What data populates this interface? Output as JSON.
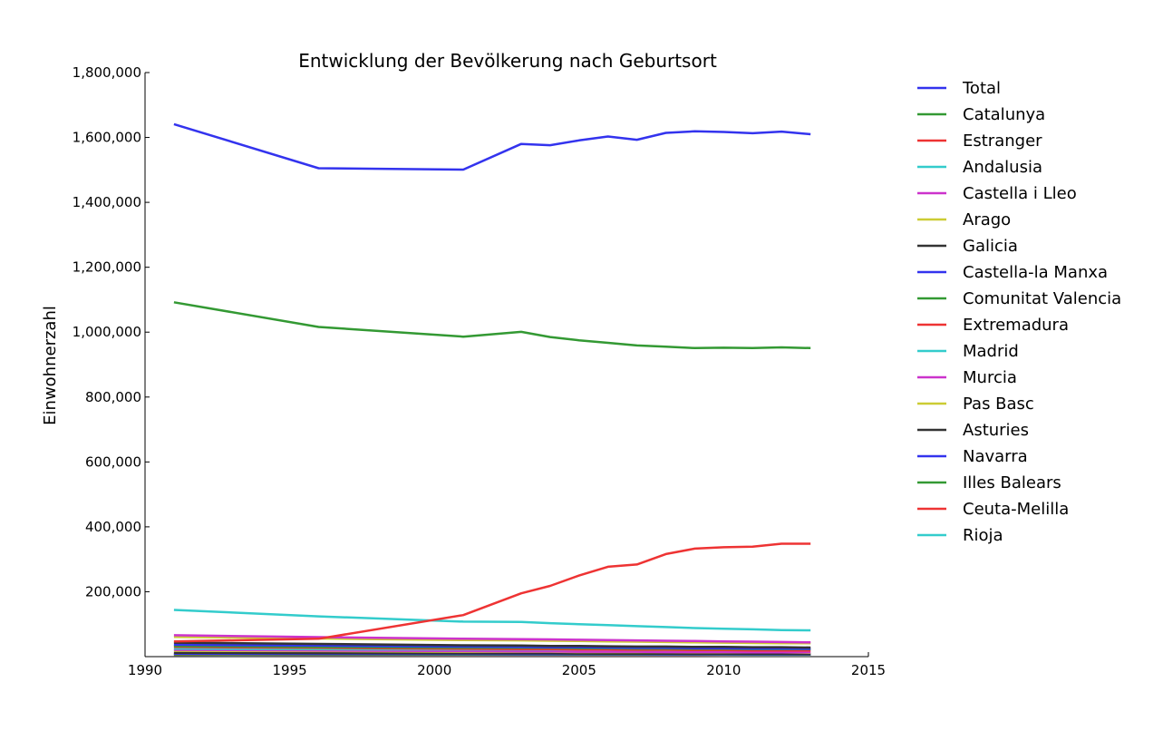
{
  "chart_data": {
    "type": "line",
    "title": "Entwicklung der Bevölkerung nach Geburtsort",
    "xlabel": "",
    "ylabel": "Einwohnerzahl",
    "xlim": [
      1990,
      2015
    ],
    "ylim": [
      0,
      1800000
    ],
    "x_ticks": [
      "1990",
      "1995",
      "2000",
      "2005",
      "2010",
      "2015"
    ],
    "y_ticks": [
      "200,000",
      "400,000",
      "600,000",
      "800,000",
      "1,000,000",
      "1,200,000",
      "1,400,000",
      "1,600,000",
      "1,800,000"
    ],
    "grid": false,
    "legend_position": "outside-right",
    "x": [
      1991,
      1996,
      2001,
      2003,
      2004,
      2005,
      2006,
      2007,
      2008,
      2009,
      2010,
      2011,
      2012,
      2013
    ],
    "series": [
      {
        "name": "Total",
        "color": "#3333ee",
        "values": [
          1641000,
          1505000,
          1501000,
          1580000,
          1576000,
          1591000,
          1603000,
          1593000,
          1614000,
          1619000,
          1617000,
          1613000,
          1618000,
          1610000
        ]
      },
      {
        "name": "Catalunya",
        "color": "#339933",
        "values": [
          1092000,
          1016000,
          986000,
          1001000,
          985000,
          975000,
          967000,
          959000,
          955000,
          951000,
          952000,
          951000,
          953000,
          951000
        ]
      },
      {
        "name": "Estranger",
        "color": "#ee3333",
        "values": [
          47000,
          55000,
          128000,
          195000,
          218000,
          250000,
          277000,
          284000,
          316000,
          333000,
          337000,
          339000,
          348000,
          348000
        ]
      },
      {
        "name": "Andalusia",
        "color": "#33cccc",
        "values": [
          144000,
          124000,
          108000,
          107000,
          103000,
          100000,
          97000,
          94000,
          91000,
          88000,
          86000,
          84000,
          82000,
          81000
        ]
      },
      {
        "name": "Castella i Lleo",
        "color": "#cc33cc",
        "values": [
          66000,
          60000,
          55000,
          54000,
          53000,
          52000,
          51000,
          50000,
          49000,
          48000,
          47000,
          46000,
          45000,
          44000
        ]
      },
      {
        "name": "Arago",
        "color": "#cccc33",
        "values": [
          61000,
          56000,
          51000,
          50000,
          49000,
          48000,
          47000,
          46000,
          45000,
          44000,
          43000,
          42000,
          41000,
          41000
        ]
      },
      {
        "name": "Galicia",
        "color": "#333333",
        "values": [
          43000,
          39000,
          35000,
          34000,
          33000,
          33000,
          32000,
          31000,
          31000,
          30000,
          30000,
          29000,
          29000,
          28000
        ]
      },
      {
        "name": "Castella-la Manxa",
        "color": "#3333ee",
        "values": [
          37000,
          34000,
          31000,
          30000,
          29000,
          29000,
          28000,
          27000,
          27000,
          26000,
          26000,
          25000,
          25000,
          24000
        ]
      },
      {
        "name": "Comunitat Valencia",
        "color": "#339933",
        "values": [
          33000,
          30000,
          28000,
          27000,
          27000,
          26000,
          26000,
          25000,
          25000,
          24000,
          24000,
          23000,
          23000,
          23000
        ]
      },
      {
        "name": "Extremadura",
        "color": "#ee3333",
        "values": [
          30000,
          27000,
          24000,
          23000,
          23000,
          22000,
          22000,
          21000,
          21000,
          20000,
          20000,
          19000,
          19000,
          19000
        ]
      },
      {
        "name": "Madrid",
        "color": "#33cccc",
        "values": [
          25000,
          23000,
          22000,
          22000,
          22000,
          22000,
          22000,
          21000,
          21000,
          21000,
          21000,
          20000,
          20000,
          20000
        ]
      },
      {
        "name": "Murcia",
        "color": "#cc33cc",
        "values": [
          21000,
          19000,
          17000,
          16000,
          16000,
          15000,
          15000,
          15000,
          14000,
          14000,
          14000,
          13000,
          13000,
          13000
        ]
      },
      {
        "name": "Pas Basc",
        "color": "#cccc33",
        "values": [
          18000,
          17000,
          15000,
          15000,
          15000,
          14000,
          14000,
          14000,
          14000,
          13000,
          13000,
          13000,
          13000,
          12000
        ]
      },
      {
        "name": "Asturies",
        "color": "#333333",
        "values": [
          12000,
          11000,
          10000,
          10000,
          10000,
          9500,
          9300,
          9100,
          9000,
          8800,
          8600,
          8400,
          8300,
          8100
        ]
      },
      {
        "name": "Navarra",
        "color": "#3333ee",
        "values": [
          9000,
          8500,
          8000,
          7900,
          7800,
          7700,
          7600,
          7500,
          7400,
          7300,
          7200,
          7100,
          7000,
          6900
        ]
      },
      {
        "name": "Illes Balears",
        "color": "#339933",
        "values": [
          7000,
          6700,
          6500,
          6400,
          6400,
          6300,
          6300,
          6200,
          6200,
          6100,
          6100,
          6000,
          6000,
          5900
        ]
      },
      {
        "name": "Ceuta-Melilla",
        "color": "#ee3333",
        "values": [
          5500,
          5200,
          5000,
          5000,
          5000,
          4900,
          4900,
          4900,
          4800,
          4800,
          4800,
          4700,
          4700,
          4700
        ]
      },
      {
        "name": "Rioja",
        "color": "#33cccc",
        "values": [
          4500,
          4200,
          4000,
          4000,
          3900,
          3900,
          3900,
          3800,
          3800,
          3800,
          3700,
          3700,
          3700,
          3600
        ]
      }
    ]
  }
}
